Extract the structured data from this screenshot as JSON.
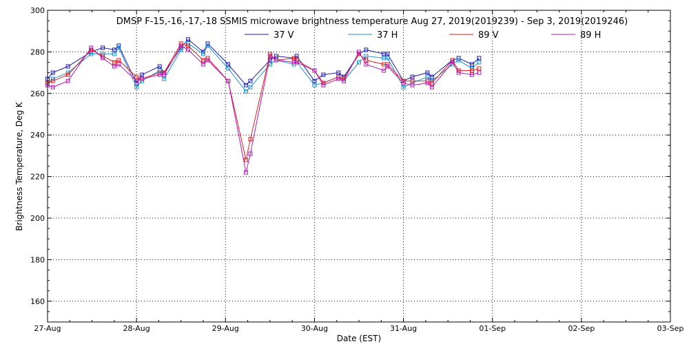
{
  "chart_data": {
    "type": "line",
    "title": "DMSP F-15,-16,-17,-18 SSMIS microwave brightness temperature Aug 27, 2019(2019239) - Sep  3, 2019(2019246)",
    "xlabel": "Date (EST)",
    "ylabel": "Brightness Temperature, Deg K",
    "xlim": [
      0,
      7
    ],
    "ylim": [
      150,
      300
    ],
    "x_ticks": [
      0,
      1,
      2,
      3,
      4,
      5,
      6,
      7
    ],
    "x_tick_labels": [
      "27-Aug",
      "28-Aug",
      "29-Aug",
      "30-Aug",
      "31-Aug",
      "01-Sep",
      "02-Sep",
      "03-Sep"
    ],
    "y_ticks": [
      160,
      180,
      200,
      220,
      240,
      260,
      280,
      300
    ],
    "y_tick_labels": [
      "160",
      "180",
      "200",
      "220",
      "240",
      "260",
      "280",
      "300"
    ],
    "grid": true,
    "legend_position": "top",
    "x": [
      0.0,
      0.06,
      0.23,
      0.49,
      0.62,
      0.75,
      0.8,
      1.0,
      1.06,
      1.26,
      1.31,
      1.5,
      1.58,
      1.75,
      1.8,
      2.03,
      2.23,
      2.28,
      2.5,
      2.57,
      2.77,
      2.8,
      3.0,
      3.1,
      3.27,
      3.33,
      3.5,
      3.58,
      3.78,
      3.82,
      4.0,
      4.1,
      4.27,
      4.32,
      4.55,
      4.62,
      4.77,
      4.85
    ],
    "series": [
      {
        "name": "37 V",
        "color": "#1a1ab3",
        "values": [
          267,
          270,
          273,
          280,
          282,
          281,
          283,
          265,
          269,
          273,
          270,
          282,
          286,
          280,
          284,
          274,
          264,
          266,
          276,
          278,
          277,
          278,
          266,
          269,
          270,
          268,
          279,
          281,
          279,
          279,
          266,
          268,
          270,
          268,
          276,
          277,
          274,
          277
        ]
      },
      {
        "name": "37 H",
        "color": "#1e90d0",
        "values": [
          265,
          267,
          270,
          279,
          279,
          279,
          282,
          263,
          266,
          271,
          267,
          281,
          284,
          279,
          283,
          272,
          261,
          263,
          274,
          276,
          274,
          275,
          264,
          265,
          268,
          266,
          275,
          278,
          277,
          277,
          263,
          265,
          268,
          266,
          274,
          276,
          272,
          275
        ]
      },
      {
        "name": "89 V",
        "color": "#e01a1a",
        "values": [
          265,
          266,
          269,
          281,
          278,
          275,
          276,
          268,
          267,
          270,
          270,
          284,
          283,
          276,
          277,
          266,
          228,
          238,
          279,
          276,
          277,
          276,
          271,
          265,
          268,
          267,
          279,
          276,
          274,
          274,
          266,
          266,
          266,
          265,
          276,
          271,
          271,
          272
        ]
      },
      {
        "name": "89 H",
        "color": "#b31ab3",
        "values": [
          264,
          263,
          266,
          282,
          277,
          273,
          274,
          266,
          267,
          269,
          269,
          283,
          281,
          274,
          276,
          266,
          222,
          231,
          278,
          276,
          275,
          275,
          271,
          264,
          267,
          266,
          280,
          274,
          271,
          273,
          265,
          264,
          265,
          263,
          275,
          270,
          269,
          270
        ]
      }
    ]
  }
}
